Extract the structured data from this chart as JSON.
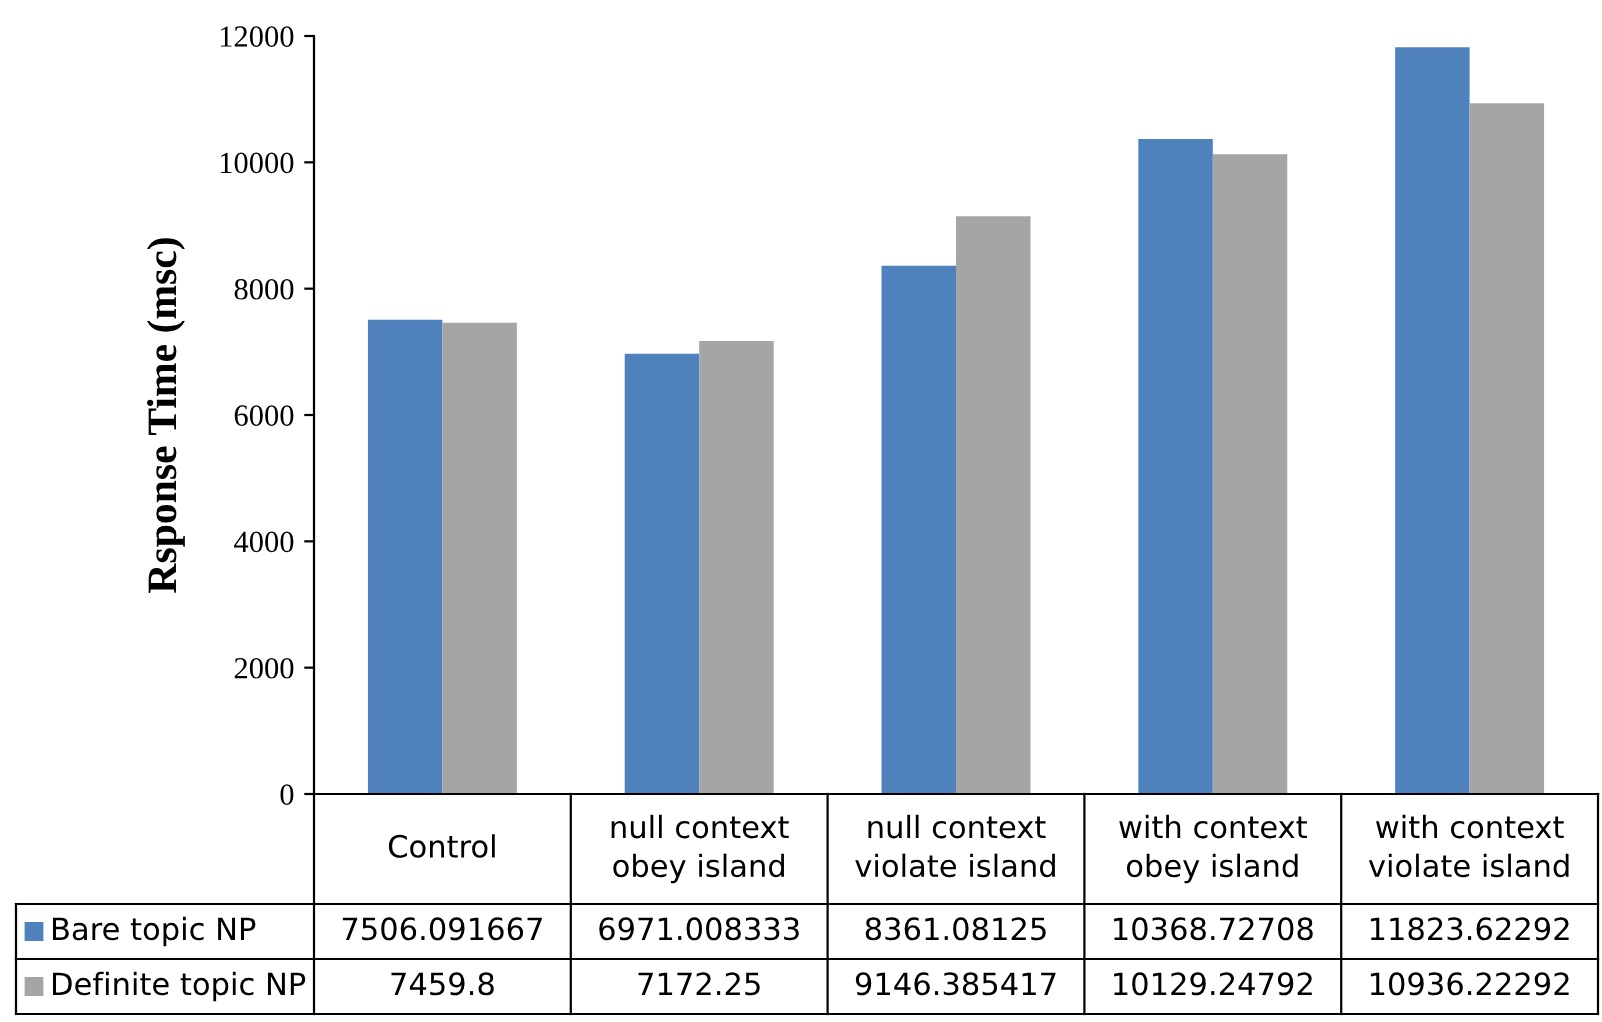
{
  "chart_data": {
    "type": "bar",
    "ylabel": "Rsponse Time (msc)",
    "categories": [
      "Control",
      "null context obey island",
      "null context violate island",
      "with context obey island",
      "with context violate island"
    ],
    "series": [
      {
        "name": "Bare topic NP",
        "color": "#4f81bd",
        "values": [
          7506.091667,
          6971.008333,
          8361.08125,
          10368.72708,
          11823.62292
        ]
      },
      {
        "name": "Definite topic NP",
        "color": "#a5a5a5",
        "values": [
          7459.8,
          7172.25,
          9146.385417,
          10129.24792,
          10936.22292
        ]
      }
    ],
    "ylim": [
      0,
      12000
    ],
    "yticks": [
      0,
      2000,
      4000,
      6000,
      8000,
      10000,
      12000
    ],
    "data_labels": true,
    "legend": "bottom",
    "grid": false
  }
}
